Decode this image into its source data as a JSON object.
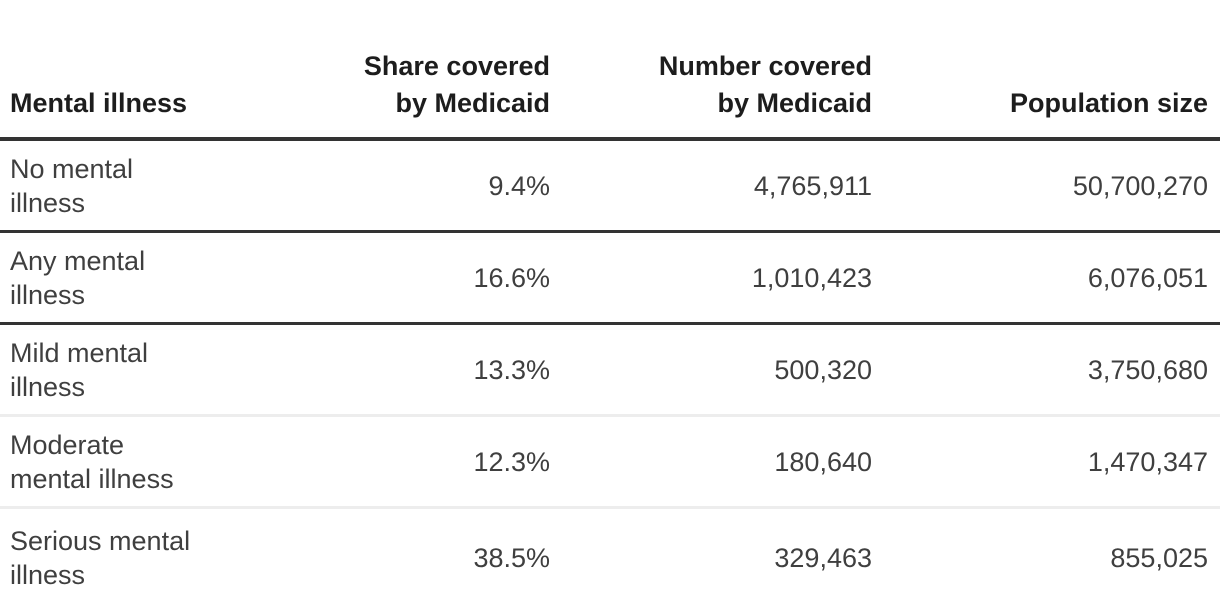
{
  "chart_data": {
    "type": "table",
    "columns": [
      {
        "id": "illness",
        "label": "Mental illness"
      },
      {
        "id": "share",
        "label": "Share covered\nby Medicaid"
      },
      {
        "id": "number",
        "label": "Number covered\nby Medicaid"
      },
      {
        "id": "population",
        "label": "Population size"
      }
    ],
    "rows": [
      {
        "illness": "No mental\nillness",
        "share": "9.4%",
        "number": "4,765,911",
        "population": "50,700,270",
        "divider_below": "dark"
      },
      {
        "illness": "Any mental\nillness",
        "share": "16.6%",
        "number": "1,010,423",
        "population": "6,076,051",
        "divider_below": "dark"
      },
      {
        "illness": "Mild mental\nillness",
        "share": "13.3%",
        "number": "500,320",
        "population": "3,750,680",
        "divider_below": "light"
      },
      {
        "illness": "Moderate\nmental illness",
        "share": "12.3%",
        "number": "180,640",
        "population": "1,470,347",
        "divider_below": "light"
      },
      {
        "illness": "Serious mental\nillness",
        "share": "38.5%",
        "number": "329,463",
        "population": "855,025",
        "divider_below": "none"
      }
    ],
    "values": {
      "share_covered_by_medicaid_pct": [
        9.4,
        16.6,
        13.3,
        12.3,
        38.5
      ],
      "number_covered_by_medicaid": [
        4765911,
        1010423,
        500320,
        180640,
        329463
      ],
      "population_size": [
        50700270,
        6076051,
        3750680,
        1470347,
        855025
      ]
    }
  },
  "colors": {
    "header_text": "#1d1d1d",
    "body_text": "#3f3f3f",
    "dark_divider": "#333333",
    "light_divider": "#ededed",
    "background": "#ffffff"
  }
}
